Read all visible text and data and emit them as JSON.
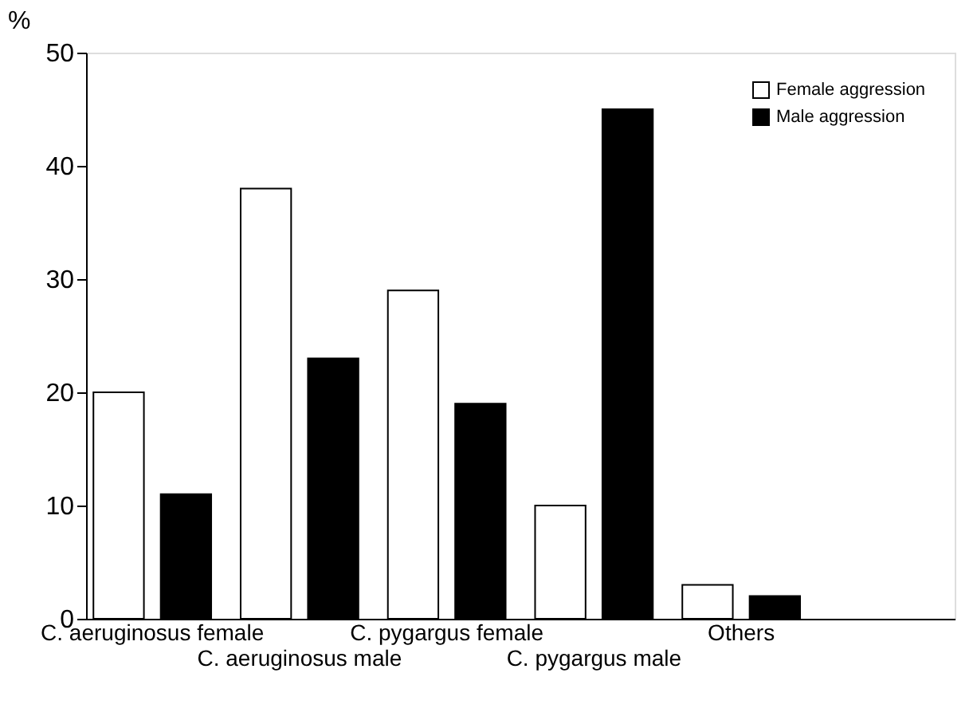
{
  "chart_data": {
    "type": "bar",
    "ylabel": "%",
    "categories": [
      "C. aeruginosus female",
      "C. aeruginosus male",
      "C. pygargus female",
      "C. pygargus male",
      "Others"
    ],
    "series": [
      {
        "name": "Female aggression",
        "color": "#ffffff",
        "values": [
          20,
          38,
          29,
          10,
          3
        ]
      },
      {
        "name": "Male aggression",
        "color": "#000000",
        "values": [
          11,
          23,
          19,
          45,
          2
        ]
      }
    ],
    "ylim": [
      0,
      50
    ],
    "yticks": [
      0,
      10,
      20,
      30,
      40,
      50
    ],
    "grid": false,
    "legend": "top right"
  }
}
